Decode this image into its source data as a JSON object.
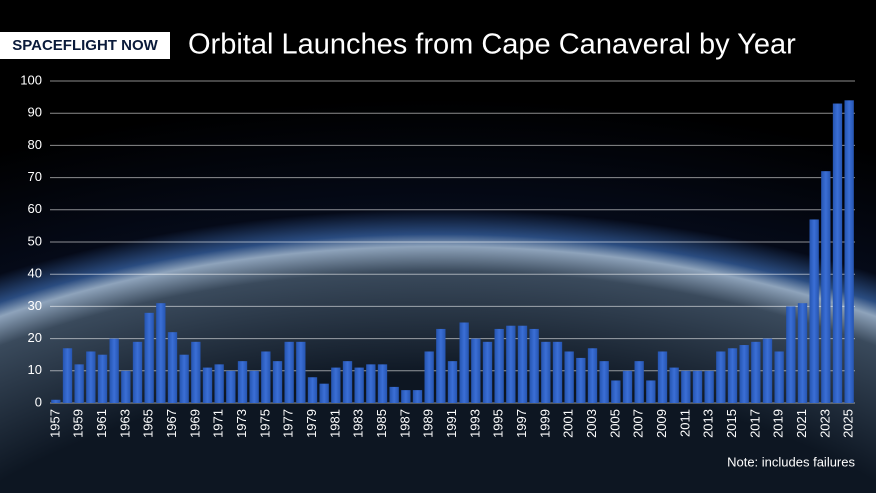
{
  "chart_data": {
    "type": "bar",
    "logo": "SPACEFLIGHT NOW",
    "title": "Orbital Launches from Cape Canaveral by Year",
    "note": "Note: includes failures",
    "categories": [
      "1957",
      null,
      "1959",
      null,
      "1961",
      null,
      "1963",
      null,
      "1965",
      null,
      "1967",
      null,
      "1969",
      null,
      "1971",
      null,
      "1973",
      null,
      "1975",
      null,
      "1977",
      null,
      "1979",
      null,
      "1981",
      null,
      "1983",
      null,
      "1985",
      null,
      "1987",
      null,
      "1989",
      null,
      "1991",
      null,
      "1993",
      null,
      "1995",
      null,
      "1997",
      null,
      "1999",
      null,
      "2001",
      null,
      "2003",
      null,
      "2005",
      null,
      "2007",
      null,
      "2009",
      null,
      "2011",
      null,
      "2013",
      null,
      "2015",
      null,
      "2017",
      null,
      "2019",
      null,
      "2021",
      null,
      "2023",
      null,
      "2025"
    ],
    "values": [
      1,
      17,
      12,
      16,
      15,
      20,
      10,
      19,
      28,
      31,
      22,
      15,
      19,
      11,
      12,
      10,
      13,
      10,
      16,
      13,
      19,
      19,
      8,
      6,
      11,
      13,
      11,
      12,
      12,
      5,
      4,
      4,
      16,
      23,
      13,
      25,
      20,
      19,
      23,
      24,
      24,
      23,
      19,
      19,
      16,
      14,
      17,
      13,
      7,
      10,
      13,
      7,
      16,
      11,
      10,
      10,
      10,
      16,
      17,
      18,
      19,
      20,
      16,
      30,
      31,
      57,
      72,
      93,
      94
    ],
    "color": "#2f62c8",
    "ylim": [
      0,
      100
    ],
    "yticks": [
      0,
      10,
      20,
      30,
      40,
      50,
      60,
      70,
      80,
      90,
      100
    ],
    "grid": true
  }
}
